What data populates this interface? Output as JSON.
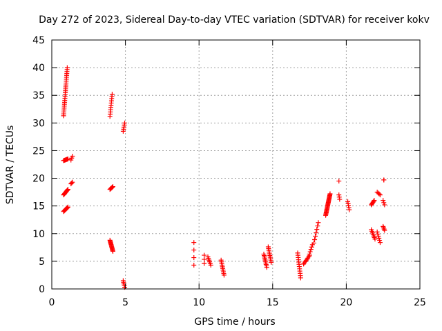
{
  "chart_data": {
    "type": "scatter",
    "title": "Day 272 of 2023, Sidereal Day-to-day VTEC variation (SDTVAR) for receiver kokv",
    "xlabel": "GPS time / hours",
    "ylabel": "SDTVAR / TECUs",
    "xlim": [
      0,
      25
    ],
    "ylim": [
      0,
      45
    ],
    "xticks": [
      0,
      5,
      10,
      15,
      20,
      25
    ],
    "yticks": [
      0,
      5,
      10,
      15,
      20,
      25,
      30,
      35,
      40,
      45
    ],
    "grid": true,
    "marker": "+",
    "color": "#ff0000",
    "segments": [
      {
        "x0": 0.8,
        "x1": 1.05,
        "y0": 31.3,
        "y1": 40.0,
        "n": 26
      },
      {
        "x0": 0.8,
        "x1": 1.1,
        "y0": 23.2,
        "y1": 23.5,
        "n": 8
      },
      {
        "x0": 1.3,
        "x1": 1.4,
        "y0": 23.3,
        "y1": 24.0,
        "n": 3
      },
      {
        "x0": 0.8,
        "x1": 1.1,
        "y0": 17.0,
        "y1": 18.0,
        "n": 10
      },
      {
        "x0": 1.3,
        "x1": 1.4,
        "y0": 19.0,
        "y1": 19.3,
        "n": 3
      },
      {
        "x0": 0.8,
        "x1": 1.1,
        "y0": 14.0,
        "y1": 14.8,
        "n": 9
      },
      {
        "x0": 3.95,
        "x1": 4.1,
        "y0": 31.2,
        "y1": 35.2,
        "n": 11
      },
      {
        "x0": 3.95,
        "x1": 4.15,
        "y0": 18.0,
        "y1": 18.5,
        "n": 6
      },
      {
        "x0": 3.95,
        "x1": 4.15,
        "y0": 8.8,
        "y1": 6.8,
        "n": 14
      },
      {
        "x0": 4.85,
        "x1": 4.95,
        "y0": 28.5,
        "y1": 30.0,
        "n": 5
      },
      {
        "x0": 4.85,
        "x1": 4.95,
        "y0": 1.5,
        "y1": 0.3,
        "n": 5
      },
      {
        "x0": 9.65,
        "x1": 9.65,
        "y0": 8.4,
        "y1": 4.3,
        "n": 4
      },
      {
        "x0": 10.35,
        "x1": 10.35,
        "y0": 6.1,
        "y1": 4.6,
        "n": 3
      },
      {
        "x0": 10.6,
        "x1": 10.8,
        "y0": 5.8,
        "y1": 4.3,
        "n": 6
      },
      {
        "x0": 11.5,
        "x1": 11.7,
        "y0": 5.2,
        "y1": 2.5,
        "n": 10
      },
      {
        "x0": 14.4,
        "x1": 14.6,
        "y0": 6.3,
        "y1": 3.9,
        "n": 10
      },
      {
        "x0": 14.7,
        "x1": 14.9,
        "y0": 7.6,
        "y1": 4.8,
        "n": 10
      },
      {
        "x0": 16.7,
        "x1": 16.9,
        "y0": 6.5,
        "y1": 2.0,
        "n": 12
      },
      {
        "x0": 17.1,
        "x1": 17.5,
        "y0": 4.5,
        "y1": 6.0,
        "n": 8
      },
      {
        "x0": 17.5,
        "x1": 17.7,
        "y0": 6.3,
        "y1": 8.0,
        "n": 5
      },
      {
        "x0": 17.8,
        "x1": 18.1,
        "y0": 8.3,
        "y1": 12.0,
        "n": 7
      },
      {
        "x0": 18.6,
        "x1": 18.9,
        "y0": 13.3,
        "y1": 17.2,
        "n": 26
      },
      {
        "x0": 19.5,
        "x1": 19.5,
        "y0": 19.5,
        "y1": 19.5,
        "n": 1
      },
      {
        "x0": 19.5,
        "x1": 19.55,
        "y0": 17.0,
        "y1": 16.2,
        "n": 3
      },
      {
        "x0": 20.1,
        "x1": 20.2,
        "y0": 15.8,
        "y1": 14.3,
        "n": 5
      },
      {
        "x0": 21.7,
        "x1": 21.9,
        "y0": 15.2,
        "y1": 16.0,
        "n": 6
      },
      {
        "x0": 21.7,
        "x1": 21.95,
        "y0": 10.7,
        "y1": 9.0,
        "n": 7
      },
      {
        "x0": 22.1,
        "x1": 22.3,
        "y0": 17.5,
        "y1": 17.0,
        "n": 4
      },
      {
        "x0": 22.1,
        "x1": 22.3,
        "y0": 10.3,
        "y1": 8.4,
        "n": 6
      },
      {
        "x0": 22.55,
        "x1": 22.55,
        "y0": 19.7,
        "y1": 19.7,
        "n": 2
      },
      {
        "x0": 22.5,
        "x1": 22.6,
        "y0": 16.0,
        "y1": 15.2,
        "n": 3
      },
      {
        "x0": 22.5,
        "x1": 22.6,
        "y0": 11.3,
        "y1": 10.6,
        "n": 4
      }
    ]
  }
}
